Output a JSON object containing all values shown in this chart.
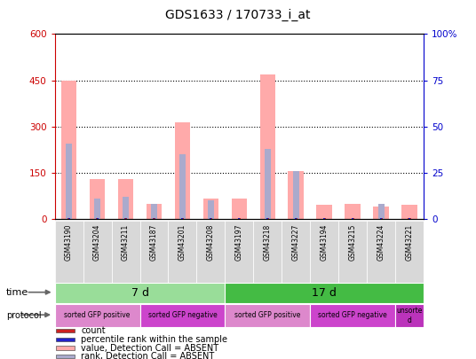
{
  "title": "GDS1633 / 170733_i_at",
  "samples": [
    "GSM43190",
    "GSM43204",
    "GSM43211",
    "GSM43187",
    "GSM43201",
    "GSM43208",
    "GSM43197",
    "GSM43218",
    "GSM43227",
    "GSM43194",
    "GSM43215",
    "GSM43224",
    "GSM43221"
  ],
  "value_absent": [
    450,
    130,
    130,
    50,
    315,
    65,
    65,
    470,
    155,
    45,
    50,
    40,
    45
  ],
  "rank_absent_pct": [
    41,
    11,
    12,
    8,
    35,
    10,
    0,
    38,
    26,
    0,
    0,
    8,
    0
  ],
  "count_present": [
    0,
    0,
    0,
    0,
    0,
    0,
    0,
    0,
    0,
    0,
    0,
    0,
    0
  ],
  "rank_present_pct": [
    0,
    0,
    0,
    0,
    0,
    0,
    0,
    0,
    0,
    0,
    0,
    0,
    0
  ],
  "ylim_left": [
    0,
    600
  ],
  "ylim_right": [
    0,
    100
  ],
  "yticks_left": [
    0,
    150,
    300,
    450,
    600
  ],
  "yticks_right": [
    0,
    25,
    50,
    75,
    100
  ],
  "left_tick_labels": [
    "0",
    "150",
    "300",
    "450",
    "600"
  ],
  "right_tick_labels": [
    "0",
    "25",
    "50",
    "75",
    "100%"
  ],
  "left_color": "#cc0000",
  "right_color": "#0000cc",
  "time_groups": [
    {
      "label": "7 d",
      "start": 0,
      "end": 6,
      "color": "#99dd99"
    },
    {
      "label": "17 d",
      "start": 6,
      "end": 13,
      "color": "#44bb44"
    }
  ],
  "protocol_groups": [
    {
      "label": "sorted GFP positive",
      "start": 0,
      "end": 3,
      "color": "#dd88cc"
    },
    {
      "label": "sorted GFP negative",
      "start": 3,
      "end": 6,
      "color": "#cc44cc"
    },
    {
      "label": "sorted GFP positive",
      "start": 6,
      "end": 9,
      "color": "#dd88cc"
    },
    {
      "label": "sorted GFP negative",
      "start": 9,
      "end": 12,
      "color": "#cc44cc"
    },
    {
      "label": "unsorte\nd",
      "start": 12,
      "end": 13,
      "color": "#bb33bb"
    }
  ],
  "legend_colors": [
    "#cc2222",
    "#2222cc",
    "#ffaaaa",
    "#aaaacc"
  ],
  "legend_labels": [
    "count",
    "percentile rank within the sample",
    "value, Detection Call = ABSENT",
    "rank, Detection Call = ABSENT"
  ],
  "bg_color": "#ffffff",
  "plot_bg_color": "#ffffff"
}
